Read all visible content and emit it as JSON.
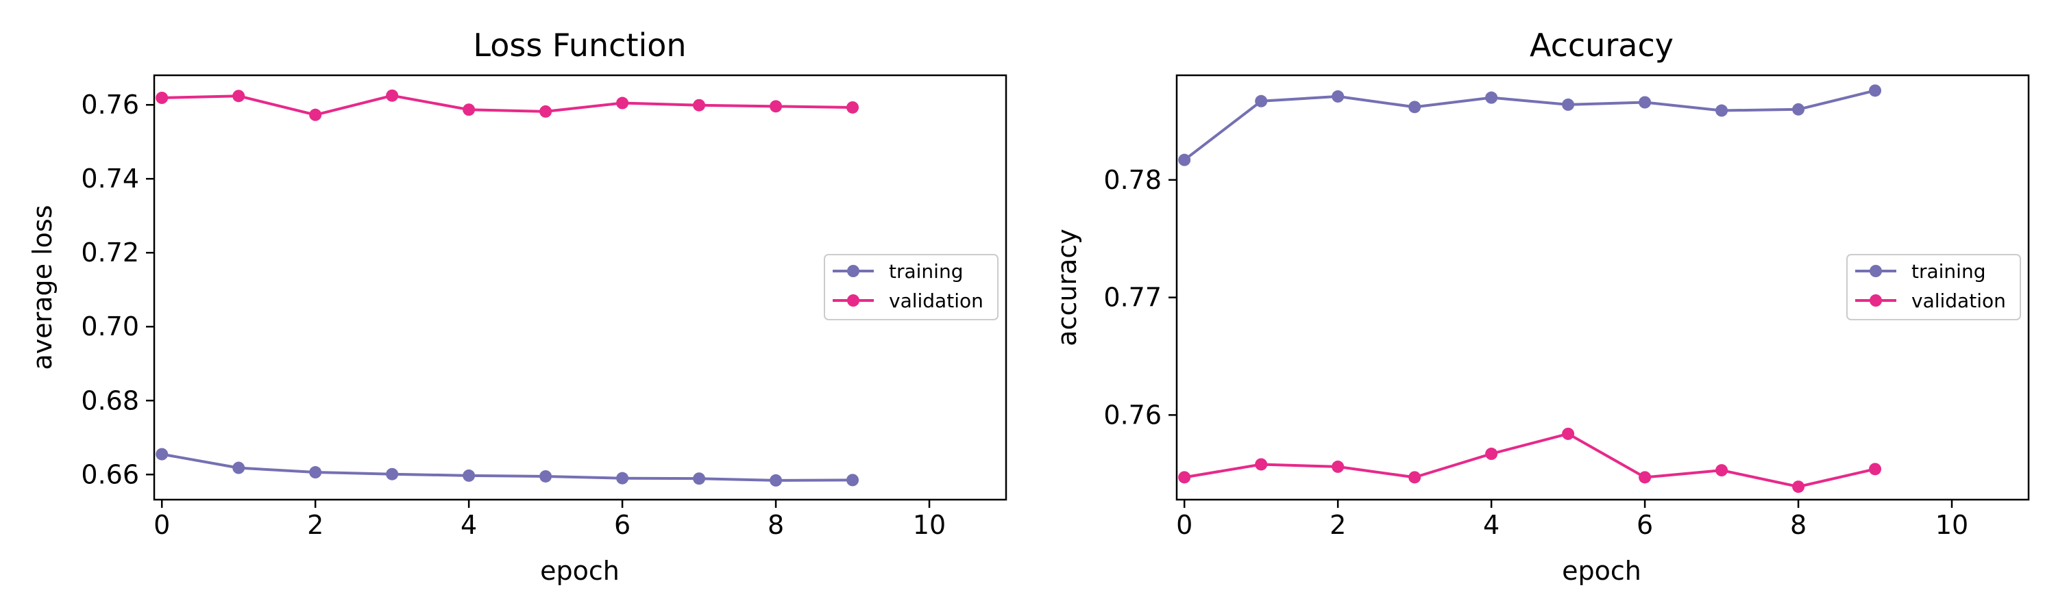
{
  "colors": {
    "training": "#7570b3",
    "validation": "#e7298a",
    "axes": "#000000",
    "legend_border": "#cccccc"
  },
  "chart_data": [
    {
      "type": "line",
      "title": "Loss Function",
      "xlabel": "epoch",
      "ylabel": "average loss",
      "xlim": [
        -0.1,
        11
      ],
      "ylim": [
        0.6532,
        0.768
      ],
      "xticks": [
        0,
        2,
        4,
        6,
        8,
        10
      ],
      "xtick_labels": [
        "0",
        "2",
        "4",
        "6",
        "8",
        "10"
      ],
      "yticks": [
        0.66,
        0.68,
        0.7,
        0.72,
        0.74,
        0.76
      ],
      "ytick_labels": [
        "0.66",
        "0.68",
        "0.70",
        "0.72",
        "0.74",
        "0.76"
      ],
      "grid": false,
      "legend_position": "center-right",
      "x": [
        0,
        1,
        2,
        3,
        4,
        5,
        6,
        7,
        8,
        9
      ],
      "series": [
        {
          "name": "training",
          "color": "#7570b3",
          "marker": "circle",
          "values": [
            0.6655,
            0.6618,
            0.6606,
            0.6601,
            0.6597,
            0.6595,
            0.659,
            0.6589,
            0.6584,
            0.6585
          ]
        },
        {
          "name": "validation",
          "color": "#e7298a",
          "marker": "circle",
          "values": [
            0.7619,
            0.7624,
            0.7573,
            0.7625,
            0.7587,
            0.7582,
            0.7605,
            0.7599,
            0.7596,
            0.7593
          ]
        }
      ]
    },
    {
      "type": "line",
      "title": "Accuracy",
      "xlabel": "epoch",
      "ylabel": "accuracy",
      "xlim": [
        -0.1,
        11
      ],
      "ylim": [
        0.7528,
        0.7889
      ],
      "xticks": [
        0,
        2,
        4,
        6,
        8,
        10
      ],
      "xtick_labels": [
        "0",
        "2",
        "4",
        "6",
        "8",
        "10"
      ],
      "yticks": [
        0.76,
        0.77,
        0.78
      ],
      "ytick_labels": [
        "0.76",
        "0.77",
        "0.78"
      ],
      "grid": false,
      "legend_position": "center-right",
      "x": [
        0,
        1,
        2,
        3,
        4,
        5,
        6,
        7,
        8,
        9
      ],
      "series": [
        {
          "name": "training",
          "color": "#7570b3",
          "marker": "circle",
          "values": [
            0.7817,
            0.7867,
            0.7871,
            0.7862,
            0.787,
            0.7864,
            0.7866,
            0.7859,
            0.786,
            0.7876
          ]
        },
        {
          "name": "validation",
          "color": "#e7298a",
          "marker": "circle",
          "values": [
            0.7547,
            0.7558,
            0.7556,
            0.7547,
            0.7567,
            0.7584,
            0.7547,
            0.7553,
            0.7539,
            0.7554
          ]
        }
      ]
    }
  ]
}
